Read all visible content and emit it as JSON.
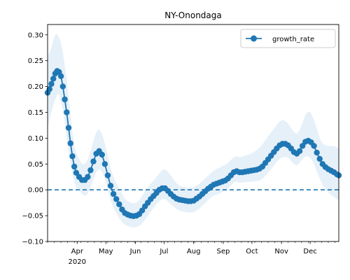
{
  "chart_data": {
    "type": "line",
    "title": "NY-Onondaga",
    "xlabel": "",
    "ylabel": "",
    "x_type": "date",
    "xlim": [
      "2020-03-01",
      "2020-12-31"
    ],
    "ylim": [
      -0.1,
      0.32
    ],
    "yticks": [
      -0.1,
      -0.05,
      0.0,
      0.05,
      0.1,
      0.15,
      0.2,
      0.25,
      0.3
    ],
    "ytick_labels": [
      "−0.10",
      "−0.05",
      "0.00",
      "0.05",
      "0.10",
      "0.15",
      "0.20",
      "0.25",
      "0.30"
    ],
    "xticks": [
      {
        "date": "2020-04-01",
        "label": "Apr",
        "sublabel": "2020"
      },
      {
        "date": "2020-05-01",
        "label": "May"
      },
      {
        "date": "2020-06-01",
        "label": "Jun"
      },
      {
        "date": "2020-07-01",
        "label": "Jul"
      },
      {
        "date": "2020-08-01",
        "label": "Aug"
      },
      {
        "date": "2020-09-01",
        "label": "Sep"
      },
      {
        "date": "2020-10-01",
        "label": "Oct"
      },
      {
        "date": "2020-11-01",
        "label": "Nov"
      },
      {
        "date": "2020-12-01",
        "label": "Dec"
      }
    ],
    "grid": false,
    "legend": {
      "position": "top-right",
      "entries": [
        "growth_rate"
      ]
    },
    "reference_line": {
      "y": 0.0,
      "style": "dashed"
    },
    "series": [
      {
        "name": "growth_rate",
        "color": "#1f77b4",
        "band_color": "#d6e6f4",
        "points": [
          [
            "2020-03-01",
            0.188,
            0.12,
            0.26
          ],
          [
            "2020-03-03",
            0.195,
            0.135,
            0.265
          ],
          [
            "2020-03-05",
            0.205,
            0.15,
            0.275
          ],
          [
            "2020-03-07",
            0.215,
            0.165,
            0.29
          ],
          [
            "2020-03-09",
            0.225,
            0.175,
            0.3
          ],
          [
            "2020-03-11",
            0.23,
            0.185,
            0.302
          ],
          [
            "2020-03-13",
            0.228,
            0.185,
            0.295
          ],
          [
            "2020-03-15",
            0.22,
            0.17,
            0.285
          ],
          [
            "2020-03-17",
            0.2,
            0.155,
            0.265
          ],
          [
            "2020-03-19",
            0.175,
            0.13,
            0.24
          ],
          [
            "2020-03-21",
            0.15,
            0.1,
            0.215
          ],
          [
            "2020-03-23",
            0.12,
            0.075,
            0.18
          ],
          [
            "2020-03-25",
            0.09,
            0.05,
            0.145
          ],
          [
            "2020-03-27",
            0.065,
            0.03,
            0.11
          ],
          [
            "2020-03-29",
            0.045,
            0.015,
            0.085
          ],
          [
            "2020-03-31",
            0.033,
            0.005,
            0.07
          ],
          [
            "2020-04-03",
            0.025,
            0.0,
            0.06
          ],
          [
            "2020-04-06",
            0.019,
            -0.008,
            0.05
          ],
          [
            "2020-04-09",
            0.019,
            -0.012,
            0.05
          ],
          [
            "2020-04-12",
            0.025,
            -0.008,
            0.058
          ],
          [
            "2020-04-15",
            0.038,
            0.005,
            0.075
          ],
          [
            "2020-04-18",
            0.055,
            0.02,
            0.095
          ],
          [
            "2020-04-21",
            0.07,
            0.035,
            0.112
          ],
          [
            "2020-04-24",
            0.075,
            0.04,
            0.118
          ],
          [
            "2020-04-27",
            0.068,
            0.035,
            0.108
          ],
          [
            "2020-04-30",
            0.05,
            0.02,
            0.09
          ],
          [
            "2020-05-03",
            0.028,
            0.0,
            0.065
          ],
          [
            "2020-05-06",
            0.008,
            -0.02,
            0.042
          ],
          [
            "2020-05-09",
            -0.008,
            -0.035,
            0.025
          ],
          [
            "2020-05-12",
            -0.018,
            -0.045,
            0.012
          ],
          [
            "2020-05-15",
            -0.028,
            -0.055,
            0.002
          ],
          [
            "2020-05-18",
            -0.038,
            -0.062,
            -0.008
          ],
          [
            "2020-05-21",
            -0.045,
            -0.068,
            -0.018
          ],
          [
            "2020-05-24",
            -0.048,
            -0.07,
            -0.022
          ],
          [
            "2020-05-27",
            -0.05,
            -0.072,
            -0.025
          ],
          [
            "2020-05-30",
            -0.051,
            -0.073,
            -0.026
          ],
          [
            "2020-06-02",
            -0.05,
            -0.072,
            -0.025
          ],
          [
            "2020-06-05",
            -0.047,
            -0.07,
            -0.02
          ],
          [
            "2020-06-08",
            -0.04,
            -0.065,
            -0.012
          ],
          [
            "2020-06-11",
            -0.032,
            -0.058,
            -0.002
          ],
          [
            "2020-06-14",
            -0.025,
            -0.05,
            0.005
          ],
          [
            "2020-06-17",
            -0.018,
            -0.042,
            0.012
          ],
          [
            "2020-06-20",
            -0.012,
            -0.035,
            0.018
          ],
          [
            "2020-06-23",
            -0.006,
            -0.028,
            0.025
          ],
          [
            "2020-06-26",
            0.0,
            -0.022,
            0.032
          ],
          [
            "2020-06-29",
            0.003,
            -0.018,
            0.038
          ],
          [
            "2020-07-02",
            0.003,
            -0.018,
            0.04
          ],
          [
            "2020-07-05",
            -0.002,
            -0.022,
            0.035
          ],
          [
            "2020-07-08",
            -0.008,
            -0.028,
            0.028
          ],
          [
            "2020-07-11",
            -0.013,
            -0.033,
            0.02
          ],
          [
            "2020-07-14",
            -0.017,
            -0.037,
            0.013
          ],
          [
            "2020-07-17",
            -0.019,
            -0.04,
            0.008
          ],
          [
            "2020-07-20",
            -0.02,
            -0.042,
            0.006
          ],
          [
            "2020-07-23",
            -0.021,
            -0.043,
            0.005
          ],
          [
            "2020-07-26",
            -0.022,
            -0.044,
            0.004
          ],
          [
            "2020-07-29",
            -0.022,
            -0.044,
            0.004
          ],
          [
            "2020-08-01",
            -0.021,
            -0.043,
            0.005
          ],
          [
            "2020-08-04",
            -0.017,
            -0.04,
            0.008
          ],
          [
            "2020-08-07",
            -0.013,
            -0.036,
            0.012
          ],
          [
            "2020-08-10",
            -0.008,
            -0.031,
            0.017
          ],
          [
            "2020-08-13",
            -0.003,
            -0.026,
            0.022
          ],
          [
            "2020-08-16",
            0.002,
            -0.02,
            0.027
          ],
          [
            "2020-08-19",
            0.006,
            -0.015,
            0.032
          ],
          [
            "2020-08-22",
            0.01,
            -0.011,
            0.037
          ],
          [
            "2020-08-25",
            0.012,
            -0.009,
            0.04
          ],
          [
            "2020-08-28",
            0.014,
            -0.007,
            0.043
          ],
          [
            "2020-08-31",
            0.016,
            -0.004,
            0.046
          ],
          [
            "2020-09-03",
            0.018,
            -0.002,
            0.048
          ],
          [
            "2020-09-06",
            0.022,
            0.002,
            0.052
          ],
          [
            "2020-09-09",
            0.028,
            0.008,
            0.058
          ],
          [
            "2020-09-12",
            0.034,
            0.014,
            0.063
          ],
          [
            "2020-09-15",
            0.036,
            0.016,
            0.065
          ],
          [
            "2020-09-18",
            0.034,
            0.014,
            0.063
          ],
          [
            "2020-09-21",
            0.034,
            0.014,
            0.064
          ],
          [
            "2020-09-24",
            0.035,
            0.015,
            0.066
          ],
          [
            "2020-09-27",
            0.036,
            0.015,
            0.068
          ],
          [
            "2020-09-30",
            0.037,
            0.016,
            0.07
          ],
          [
            "2020-10-03",
            0.038,
            0.016,
            0.073
          ],
          [
            "2020-10-06",
            0.039,
            0.017,
            0.077
          ],
          [
            "2020-10-09",
            0.041,
            0.018,
            0.082
          ],
          [
            "2020-10-12",
            0.045,
            0.021,
            0.088
          ],
          [
            "2020-10-15",
            0.052,
            0.027,
            0.096
          ],
          [
            "2020-10-18",
            0.059,
            0.033,
            0.104
          ],
          [
            "2020-10-21",
            0.066,
            0.04,
            0.111
          ],
          [
            "2020-10-24",
            0.073,
            0.047,
            0.118
          ],
          [
            "2020-10-27",
            0.08,
            0.054,
            0.126
          ],
          [
            "2020-10-30",
            0.086,
            0.06,
            0.132
          ],
          [
            "2020-11-02",
            0.089,
            0.063,
            0.135
          ],
          [
            "2020-11-05",
            0.089,
            0.064,
            0.133
          ],
          [
            "2020-11-08",
            0.086,
            0.062,
            0.128
          ],
          [
            "2020-11-11",
            0.08,
            0.056,
            0.12
          ],
          [
            "2020-11-14",
            0.073,
            0.05,
            0.112
          ],
          [
            "2020-11-17",
            0.07,
            0.047,
            0.108
          ],
          [
            "2020-11-20",
            0.075,
            0.052,
            0.115
          ],
          [
            "2020-11-23",
            0.085,
            0.06,
            0.13
          ],
          [
            "2020-11-26",
            0.093,
            0.065,
            0.145
          ],
          [
            "2020-11-29",
            0.095,
            0.065,
            0.152
          ],
          [
            "2020-12-02",
            0.092,
            0.06,
            0.148
          ],
          [
            "2020-12-05",
            0.085,
            0.05,
            0.135
          ],
          [
            "2020-12-08",
            0.072,
            0.035,
            0.118
          ],
          [
            "2020-12-11",
            0.06,
            0.022,
            0.1
          ],
          [
            "2020-12-14",
            0.05,
            0.01,
            0.09
          ],
          [
            "2020-12-17",
            0.044,
            0.002,
            0.086
          ],
          [
            "2020-12-20",
            0.04,
            -0.005,
            0.085
          ],
          [
            "2020-12-23",
            0.037,
            -0.01,
            0.085
          ],
          [
            "2020-12-26",
            0.034,
            -0.014,
            0.085
          ],
          [
            "2020-12-29",
            0.03,
            -0.018,
            0.082
          ],
          [
            "2020-12-31",
            0.028,
            -0.02,
            0.08
          ]
        ]
      }
    ]
  }
}
